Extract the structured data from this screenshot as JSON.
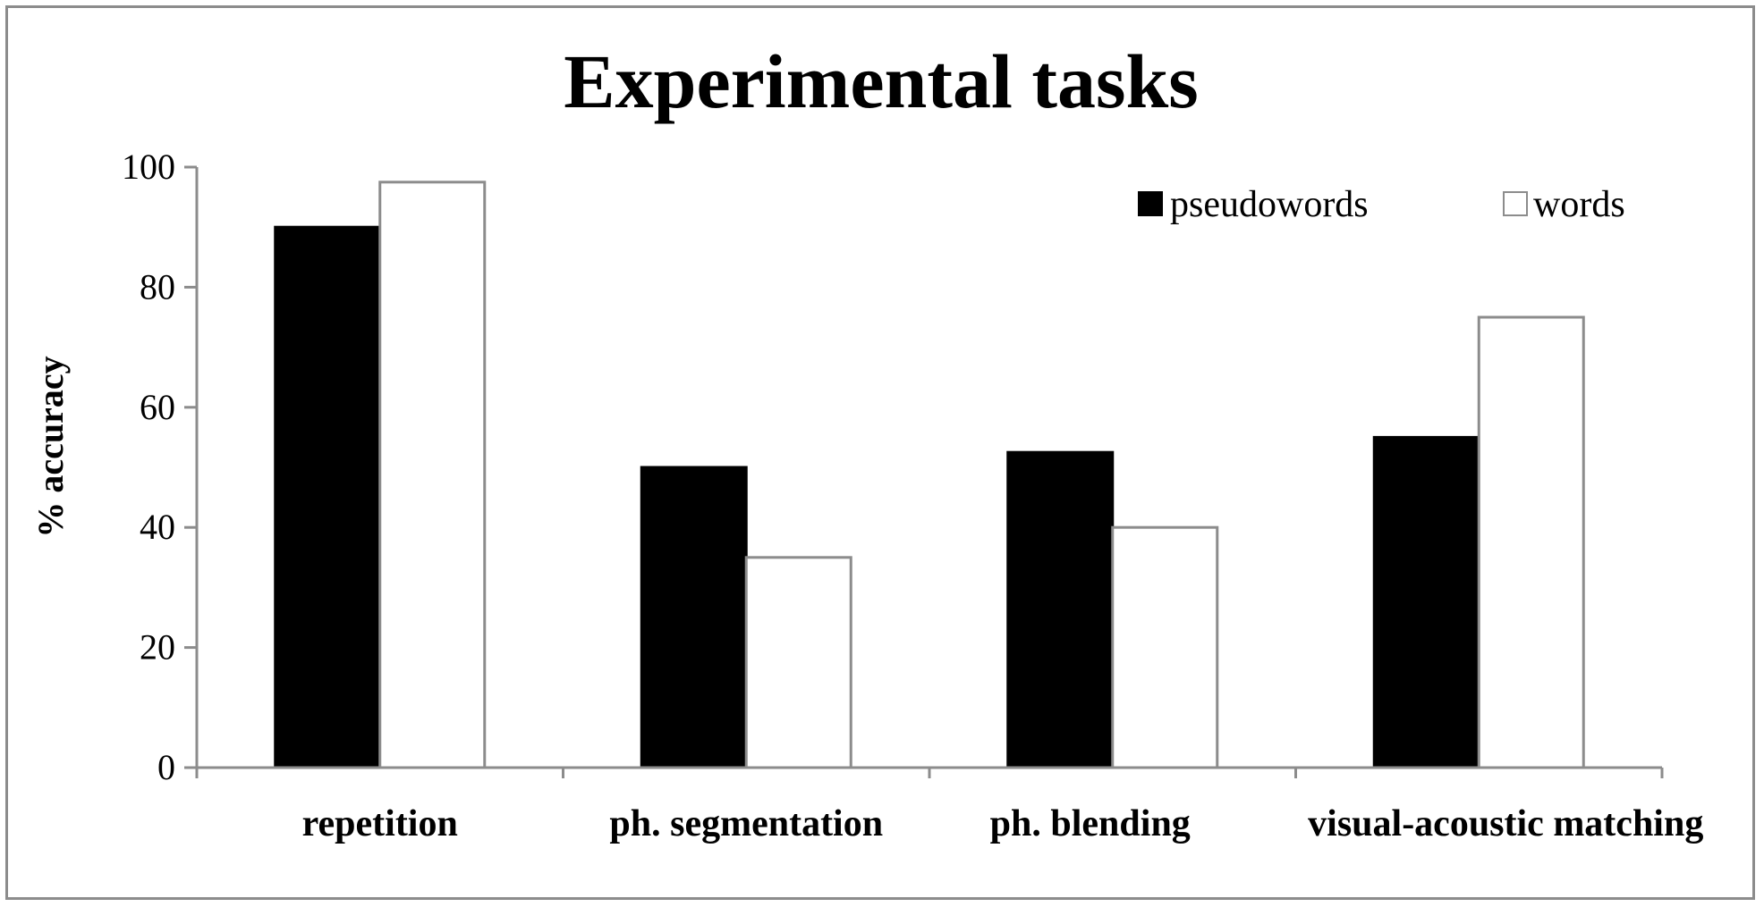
{
  "chart_data": {
    "type": "bar",
    "title": "Experimental tasks",
    "ylabel": "% accuracy",
    "xlabel": "",
    "ylim": [
      0,
      100
    ],
    "yticks": [
      0,
      20,
      40,
      60,
      80,
      100
    ],
    "categories": [
      "repetition",
      "ph. segmentation",
      "ph. blending",
      "visual-acoustic matching"
    ],
    "series": [
      {
        "name": "pseudowords",
        "values": [
          90,
          50,
          52.5,
          55
        ],
        "color": "#000000"
      },
      {
        "name": "words",
        "values": [
          97.5,
          35,
          40,
          75
        ],
        "color": "#ffffff"
      }
    ],
    "legend_position": "top-right",
    "grid": false
  }
}
